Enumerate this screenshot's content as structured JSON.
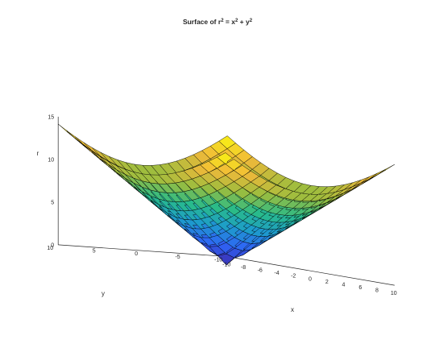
{
  "chart_data": {
    "type": "surface",
    "title": {
      "main": "Surface of r",
      "sup1": "2",
      "mid": " = x",
      "sup2": "2",
      "sep": " + y",
      "sup3": "2"
    },
    "xlabel": "x",
    "ylabel": "y",
    "zlabel": "r",
    "xlim": [
      -10,
      10
    ],
    "ylim": [
      -10,
      10
    ],
    "zlim": [
      0,
      15
    ],
    "xticks": [
      "-10",
      "-8",
      "-6",
      "-4",
      "-2",
      "0",
      "2",
      "4",
      "6",
      "8",
      "10"
    ],
    "yticks": [
      "-10",
      "-5",
      "0",
      "5",
      "10"
    ],
    "zticks": [
      "0",
      "5",
      "10",
      "15"
    ],
    "function": "r = sqrt(x^2 + y^2)",
    "grid": {
      "x_start": -10,
      "x_end": 10,
      "y_start": -10,
      "y_end": 10,
      "step": 1
    },
    "colormap": [
      "#3e26a8",
      "#2f64f6",
      "#1d9ccc",
      "#28bb89",
      "#9bbd3e",
      "#f1b93a",
      "#f9fb0e"
    ],
    "edge_color": "#000000"
  }
}
